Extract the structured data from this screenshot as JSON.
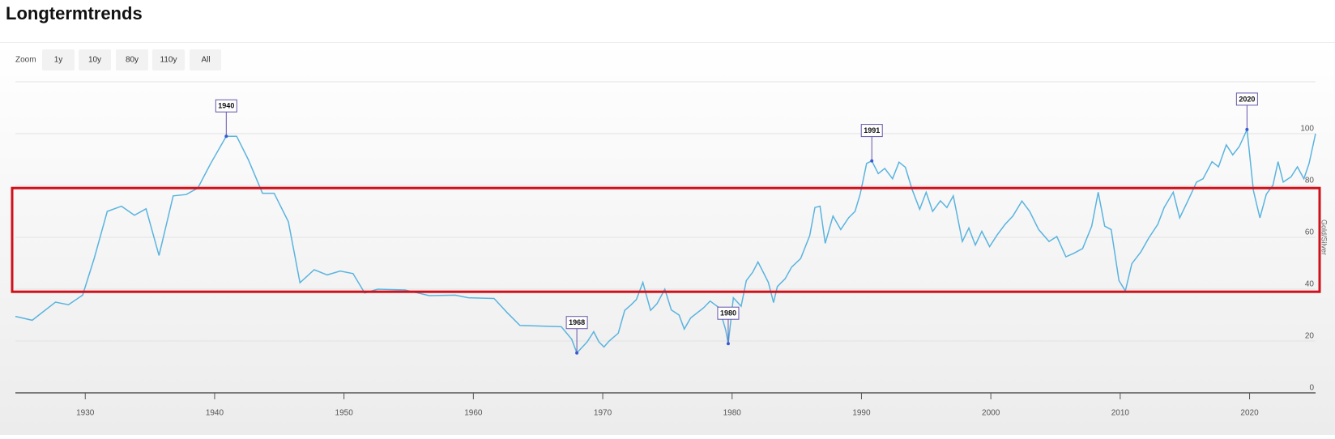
{
  "title": "Longtermtrends",
  "zoom": {
    "label": "Zoom",
    "buttons": [
      "1y",
      "10y",
      "80y",
      "110y",
      "All"
    ]
  },
  "chart_data": {
    "type": "line",
    "ylabel": "Gold/Silver",
    "color": "#5ab4df",
    "x": [
      1924.6,
      1925.9,
      1927.7,
      1928.7,
      1929.8,
      1930.7,
      1931.7,
      1932.8,
      1933.8,
      1934.7,
      1935.7,
      1936.8,
      1937.8,
      1938.7,
      1939.7,
      1940.9,
      1941.7,
      1942.6,
      1943.7,
      1944.6,
      1945.7,
      1946.6,
      1947.7,
      1948.7,
      1949.7,
      1950.7,
      1951.6,
      1952.6,
      1954.7,
      1956.6,
      1958.6,
      1959.6,
      1961.6,
      1962.6,
      1963.6,
      1966.8,
      1967.6,
      1968.0,
      1968.8,
      1969.3,
      1969.7,
      1970.1,
      1970.5,
      1971.2,
      1971.7,
      1972.2,
      1972.6,
      1973.1,
      1973.7,
      1974.2,
      1974.8,
      1975.3,
      1975.9,
      1976.3,
      1976.8,
      1977.8,
      1978.3,
      1979.0,
      1979.5,
      1979.7,
      1980.1,
      1980.7,
      1981.1,
      1981.6,
      1982.0,
      1982.4,
      1982.8,
      1983.2,
      1983.5,
      1984.1,
      1984.6,
      1985.3,
      1986.0,
      1986.4,
      1986.8,
      1987.2,
      1987.8,
      1988.4,
      1989.0,
      1989.5,
      1989.9,
      1990.4,
      1990.8,
      1991.3,
      1991.8,
      1992.4,
      1992.9,
      1993.4,
      1993.9,
      1994.5,
      1995.0,
      1995.5,
      1996.1,
      1996.6,
      1997.1,
      1997.8,
      1998.3,
      1998.8,
      1999.3,
      1999.9,
      2000.5,
      2001.1,
      2001.7,
      2002.4,
      2003.0,
      2003.7,
      2004.5,
      2005.1,
      2005.8,
      2006.4,
      2007.1,
      2007.8,
      2008.3,
      2008.8,
      2009.3,
      2009.9,
      2010.4,
      2010.9,
      2011.6,
      2012.2,
      2012.9,
      2013.4,
      2014.1,
      2014.6,
      2015.3,
      2015.9,
      2016.4,
      2017.1,
      2017.6,
      2018.2,
      2018.7,
      2019.2,
      2019.8,
      2020.3,
      2020.8,
      2021.3,
      2021.8,
      2022.2,
      2022.6,
      2023.2,
      2023.7,
      2024.2,
      2024.6,
      2025.1
    ],
    "values": [
      29.5,
      28,
      35,
      34,
      37.7,
      52,
      70,
      72,
      68.5,
      71,
      53,
      76,
      76.5,
      79,
      88.5,
      99,
      99,
      90,
      77,
      77,
      66,
      42.5,
      47.5,
      45.5,
      47,
      46,
      38.5,
      40,
      39.7,
      37.5,
      37.7,
      36.7,
      36.4,
      31,
      26,
      25.5,
      20.7,
      15.4,
      19.7,
      23.6,
      19.7,
      17.7,
      20,
      23,
      31.8,
      34,
      36,
      42.6,
      31.8,
      34.4,
      40,
      32,
      30,
      24.6,
      28.9,
      32.8,
      35.4,
      32.8,
      24.3,
      19,
      36.7,
      33.4,
      43.3,
      46.6,
      50.5,
      46.6,
      42.6,
      34.8,
      41,
      44,
      48.5,
      51.8,
      60.7,
      71.5,
      72,
      57.7,
      68.2,
      63,
      67.5,
      70,
      76.7,
      88.5,
      89.5,
      84.6,
      86.6,
      82.6,
      89,
      87,
      78.7,
      70.8,
      77.4,
      70,
      74.1,
      71.5,
      76,
      58.4,
      63.6,
      57,
      62.3,
      56.4,
      61,
      65,
      68.2,
      74,
      70,
      63,
      58.4,
      60.3,
      52.5,
      53.8,
      55.7,
      64.3,
      77.4,
      64.3,
      63,
      43.3,
      39.3,
      49.8,
      54.4,
      59.7,
      65,
      71.5,
      77.4,
      67.5,
      74.8,
      81.3,
      82.6,
      89.2,
      87.2,
      95.7,
      91.8,
      95,
      101.6,
      78,
      67.5,
      76.7,
      80,
      89.2,
      81.3,
      83.3,
      87.2,
      82.6,
      88.5,
      100
    ],
    "xlim": [
      1924.6,
      2025.1
    ],
    "xticks": [
      1930,
      1940,
      1950,
      1960,
      1970,
      1980,
      1990,
      2000,
      2010,
      2020
    ],
    "ylim": [
      0,
      120
    ],
    "yticks": [
      0,
      20,
      40,
      60,
      80,
      100
    ],
    "grid": true,
    "annotations": [
      {
        "x": 1940.9,
        "y": 99,
        "label": "1940"
      },
      {
        "x": 1968.0,
        "y": 15.4,
        "label": "1968"
      },
      {
        "x": 1979.7,
        "y": 19,
        "label": "1980"
      },
      {
        "x": 1990.8,
        "y": 89.5,
        "label": "1991"
      },
      {
        "x": 2019.8,
        "y": 101.6,
        "label": "2020"
      }
    ],
    "highlight": {
      "ylim": [
        39,
        79
      ],
      "color": "#d0101b"
    }
  }
}
